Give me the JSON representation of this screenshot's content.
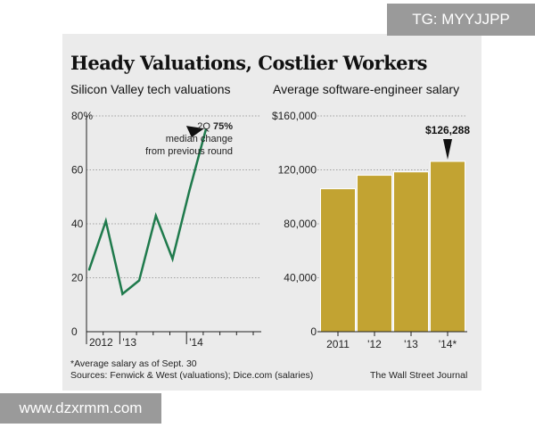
{
  "title": "Heady Valuations, Costlier Workers",
  "watermarks": {
    "top": "TG: MYYJJPP",
    "bottom": "www.dzxrmm.com"
  },
  "footnote": "*Average salary as of Sept. 30",
  "sources": "Sources: Fenwick & West (valuations); Dice.com (salaries)",
  "credit": "The Wall Street Journal",
  "colors": {
    "line": "#1f7a4c",
    "bar": "#c2a332",
    "bar_edge": "#ffffff",
    "panel": "#ebebeb"
  },
  "chart_data": [
    {
      "type": "line",
      "title": "Silicon Valley tech valuations",
      "ylabel": "median change from previous round (%)",
      "ylim": [
        0,
        80
      ],
      "y_ticks": [
        0,
        20,
        40,
        60,
        80
      ],
      "y_tick_labels": [
        "0",
        "20",
        "40",
        "60",
        "80%"
      ],
      "x": [
        "2012 Q1",
        "2012 Q2",
        "2013 Q1",
        "2013 Q2",
        "2013 Q3",
        "2013 Q4",
        "2014 Q1",
        "2014 Q2"
      ],
      "values": [
        23,
        41,
        14,
        19,
        43,
        27,
        52,
        75
      ],
      "x_tick_labels": [
        {
          "label": "2012",
          "index": 0
        },
        {
          "label": "'13",
          "index": 2
        },
        {
          "label": "'14",
          "index": 6
        }
      ],
      "annotation": {
        "prefix": "2Q",
        "value": "75%",
        "line2": "median change",
        "line3": "from previous round"
      }
    },
    {
      "type": "bar",
      "title": "Average software-engineer salary",
      "categories": [
        "2011",
        "'12",
        "'13",
        "'14*"
      ],
      "values": [
        106000,
        116000,
        118500,
        126288
      ],
      "ylim": [
        0,
        160000
      ],
      "y_ticks": [
        0,
        40000,
        80000,
        120000,
        160000
      ],
      "y_tick_labels": [
        "0",
        "40,000",
        "80,000",
        "120,000",
        "$160,000"
      ],
      "annotation": {
        "value": "$126,288"
      }
    }
  ]
}
